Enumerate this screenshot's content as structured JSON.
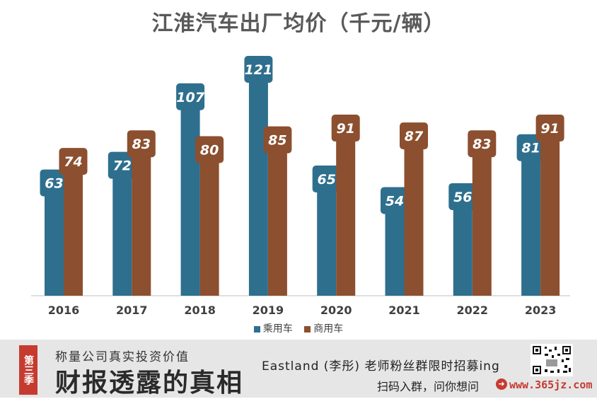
{
  "chart_data": {
    "type": "bar",
    "title": "江淮汽车出厂均价（千元/辆）",
    "categories": [
      "2016",
      "2017",
      "2018",
      "2019",
      "2020",
      "2021",
      "2022",
      "2023"
    ],
    "series": [
      {
        "name": "乘用车",
        "color": "#2e6f8e",
        "values": [
          63,
          72,
          107,
          121,
          65,
          54,
          56,
          81
        ]
      },
      {
        "name": "商用车",
        "color": "#8c4f2f",
        "values": [
          74,
          83,
          80,
          85,
          91,
          87,
          83,
          91
        ]
      }
    ],
    "ylim": [
      0,
      121
    ],
    "grid": false,
    "legend_position": "bottom"
  },
  "footer": {
    "season": "第三季",
    "subtitle": "称量公司真实投资价值",
    "title": "财报透露的真相",
    "promo_line": "Eastland (李彤) 老师粉丝群限时招募ing",
    "cta": "扫码入群，问你想问",
    "url": "www.365jz.com"
  }
}
